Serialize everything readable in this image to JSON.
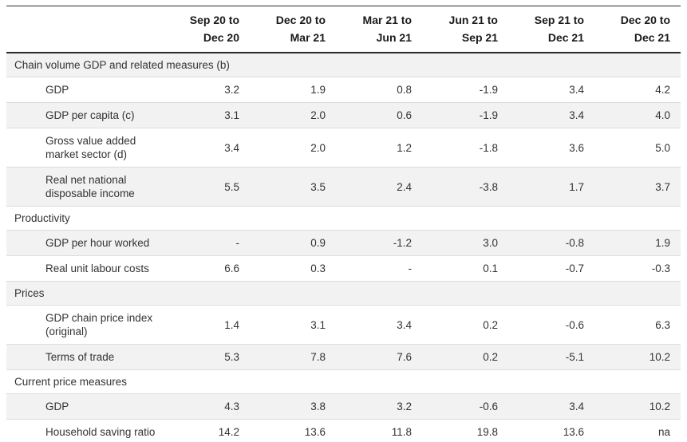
{
  "table": {
    "columns": [
      "Sep 20 to\nDec 20",
      "Dec 20 to\nMar 21",
      "Mar 21 to\nJun 21",
      "Jun 21 to\nSep 21",
      "Sep 21 to\nDec 21",
      "Dec 20 to\nDec 21"
    ],
    "sections": [
      {
        "label": "Chain volume GDP and related measures (b)",
        "rows": [
          {
            "label": "GDP",
            "values": [
              "3.2",
              "1.9",
              "0.8",
              "-1.9",
              "3.4",
              "4.2"
            ]
          },
          {
            "label": "GDP per capita (c)",
            "values": [
              "3.1",
              "2.0",
              "0.6",
              "-1.9",
              "3.4",
              "4.0"
            ]
          },
          {
            "label": "Gross value added\nmarket sector (d)",
            "values": [
              "3.4",
              "2.0",
              "1.2",
              "-1.8",
              "3.6",
              "5.0"
            ]
          },
          {
            "label": "Real net national\ndisposable income",
            "values": [
              "5.5",
              "3.5",
              "2.4",
              "-3.8",
              "1.7",
              "3.7"
            ]
          }
        ]
      },
      {
        "label": "Productivity",
        "rows": [
          {
            "label": "GDP per hour worked",
            "values": [
              "-",
              "0.9",
              "-1.2",
              "3.0",
              "-0.8",
              "1.9"
            ]
          },
          {
            "label": "Real unit labour costs",
            "values": [
              "6.6",
              "0.3",
              "-",
              "0.1",
              "-0.7",
              "-0.3"
            ]
          }
        ]
      },
      {
        "label": "Prices",
        "rows": [
          {
            "label": "GDP chain price index\n(original)",
            "values": [
              "1.4",
              "3.1",
              "3.4",
              "0.2",
              "-0.6",
              "6.3"
            ]
          },
          {
            "label": "Terms of trade",
            "values": [
              "5.3",
              "7.8",
              "7.6",
              "0.2",
              "-5.1",
              "10.2"
            ]
          }
        ]
      },
      {
        "label": "Current price measures",
        "rows": [
          {
            "label": "GDP",
            "values": [
              "4.3",
              "3.8",
              "3.2",
              "-0.6",
              "3.4",
              "10.2"
            ]
          },
          {
            "label": "Household saving ratio",
            "values": [
              "14.2",
              "13.6",
              "11.8",
              "19.8",
              "13.6",
              "na"
            ]
          }
        ]
      }
    ]
  },
  "colors": {
    "stripe_bg": "#f2f2f2",
    "rule_dark": "#2b2b2b",
    "rule_light": "#dcdcdc",
    "text": "#333333"
  }
}
